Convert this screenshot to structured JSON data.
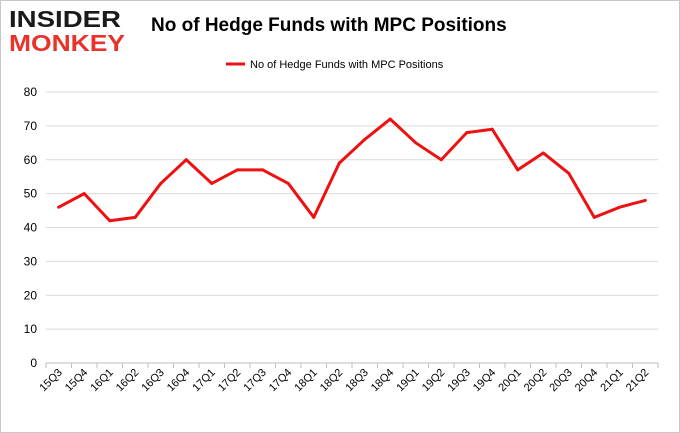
{
  "logo": {
    "line1": "INSIDER",
    "line2": "MONKEY"
  },
  "colors": {
    "line": "#ee1111",
    "grid": "#d9d9d9",
    "logo_red": "#e8332a",
    "text": "#000000"
  },
  "chart_data": {
    "type": "line",
    "title": "No of Hedge Funds with MPC Positions",
    "xlabel": "",
    "ylabel": "",
    "ylim": [
      0,
      80
    ],
    "yticks": [
      0,
      10,
      20,
      30,
      40,
      50,
      60,
      70,
      80
    ],
    "grid": true,
    "legend_position": "top-center",
    "categories": [
      "15Q3",
      "15Q4",
      "16Q1",
      "16Q2",
      "16Q3",
      "16Q4",
      "17Q1",
      "17Q2",
      "17Q3",
      "17Q4",
      "18Q1",
      "18Q2",
      "18Q3",
      "18Q4",
      "19Q1",
      "19Q2",
      "19Q3",
      "19Q4",
      "20Q1",
      "20Q2",
      "20Q3",
      "20Q4",
      "21Q1",
      "21Q2"
    ],
    "series": [
      {
        "name": "No of Hedge Funds with MPC Positions",
        "values": [
          46,
          50,
          42,
          43,
          53,
          60,
          53,
          57,
          57,
          53,
          43,
          59,
          66,
          72,
          65,
          60,
          68,
          69,
          57,
          62,
          56,
          43,
          46,
          48
        ]
      }
    ]
  }
}
